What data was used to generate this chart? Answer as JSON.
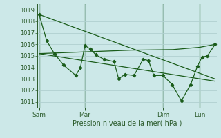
{
  "background_color": "#cce8e8",
  "grid_color": "#b0d0d0",
  "line_color": "#1a5c1a",
  "xlabel": "Pression niveau de la mer( hPa )",
  "ylim": [
    1010.5,
    1019.5
  ],
  "xlim": [
    -2,
    232
  ],
  "yticks": [
    1011,
    1012,
    1013,
    1014,
    1015,
    1016,
    1017,
    1018,
    1019
  ],
  "day_labels": [
    "Sam",
    "Mar",
    "Dim",
    "Lun"
  ],
  "day_positions": [
    0,
    60,
    162,
    210
  ],
  "series1_x": [
    0,
    10,
    20,
    32,
    48,
    54,
    60,
    67,
    74,
    85,
    98,
    104,
    112,
    124,
    136,
    143,
    150,
    162,
    174,
    186,
    198,
    207,
    213,
    220,
    230
  ],
  "series1_y": [
    1018.6,
    1016.3,
    1015.2,
    1014.2,
    1013.3,
    1014.0,
    1015.9,
    1015.6,
    1015.1,
    1014.7,
    1014.5,
    1013.0,
    1013.4,
    1013.3,
    1014.7,
    1014.6,
    1013.3,
    1013.3,
    1012.5,
    1011.1,
    1012.5,
    1014.1,
    1014.9,
    1015.0,
    1016.0
  ],
  "series2_x": [
    0,
    60,
    120,
    175,
    210,
    230
  ],
  "series2_y": [
    1015.2,
    1015.35,
    1015.5,
    1015.55,
    1015.75,
    1016.0
  ],
  "series3_x": [
    0,
    230
  ],
  "series3_y": [
    1018.6,
    1013.0
  ],
  "series4_x": [
    0,
    230
  ],
  "series4_y": [
    1015.2,
    1012.8
  ]
}
